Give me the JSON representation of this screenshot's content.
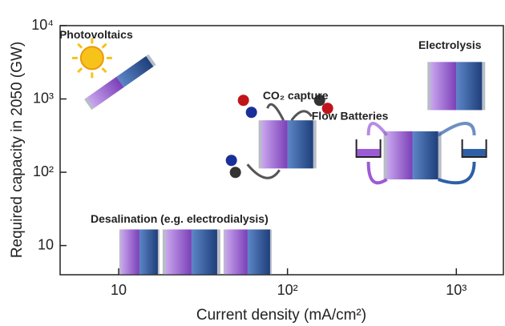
{
  "chart_data": {
    "type": "scatter",
    "xlabel": "Current density (mA/cm²)",
    "ylabel": "Required capacity in 2050 (GW)",
    "log_x": true,
    "log_y": true,
    "xlim": [
      4.5,
      1900
    ],
    "ylim": [
      4,
      10000
    ],
    "xticks": [
      10,
      {
        "value": 100,
        "label": "10²"
      },
      {
        "value": 1000,
        "label": "10³"
      }
    ],
    "yticks": [
      10,
      {
        "value": 100,
        "label": "10²"
      },
      {
        "value": 1000,
        "label": "10³"
      },
      {
        "value": 10000,
        "label": "10⁴"
      }
    ],
    "labels": [
      "Photovoltaics",
      "CO₂ capture",
      "Electrolysis",
      "Flow Batteries",
      "Desalination (e.g. electrodialysis)"
    ],
    "x": [
      10.2,
      100,
      1000,
      550,
      27
    ],
    "y": [
      1700,
      240,
      1500,
      170,
      8.2
    ],
    "colors": [
      "#9b5ad6",
      "#2f5fa6"
    ]
  }
}
